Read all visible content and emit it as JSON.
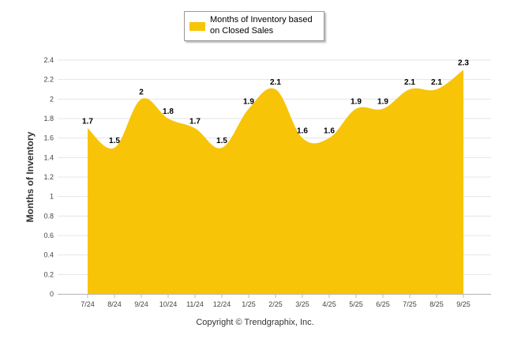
{
  "chart_data": {
    "type": "area",
    "categories": [
      "7/24",
      "8/24",
      "9/24",
      "10/24",
      "11/24",
      "12/24",
      "1/25",
      "2/25",
      "3/25",
      "4/25",
      "5/25",
      "6/25",
      "7/25",
      "8/25",
      "9/25"
    ],
    "series": [
      {
        "name": "Months of Inventory based on Closed Sales",
        "values": [
          1.7,
          1.5,
          2,
          1.8,
          1.7,
          1.5,
          1.9,
          2.1,
          1.6,
          1.6,
          1.9,
          1.9,
          2.1,
          2.1,
          2.3
        ]
      }
    ],
    "data_labels": [
      "1.7",
      "1.5",
      "2",
      "1.8",
      "1.7",
      "1.5",
      "1.9",
      "2.1",
      "1.6",
      "1.6",
      "1.9",
      "1.9",
      "2.1",
      "2.1",
      "2.3"
    ],
    "ylabel": "Months of Inventory",
    "xlabel": "",
    "ylim": [
      0,
      2.4
    ],
    "yticks": [
      "0",
      "0.2",
      "0.4",
      "0.6",
      "0.8",
      "1",
      "1.2",
      "1.4",
      "1.6",
      "1.8",
      "2",
      "2.2",
      "2.4"
    ],
    "grid": true,
    "legend_position": "top-center",
    "color": "#f7c408"
  },
  "legend": {
    "label": "Months of Inventory based on Closed Sales"
  },
  "footer": {
    "copyright": "Copyright © Trendgraphix, Inc."
  }
}
